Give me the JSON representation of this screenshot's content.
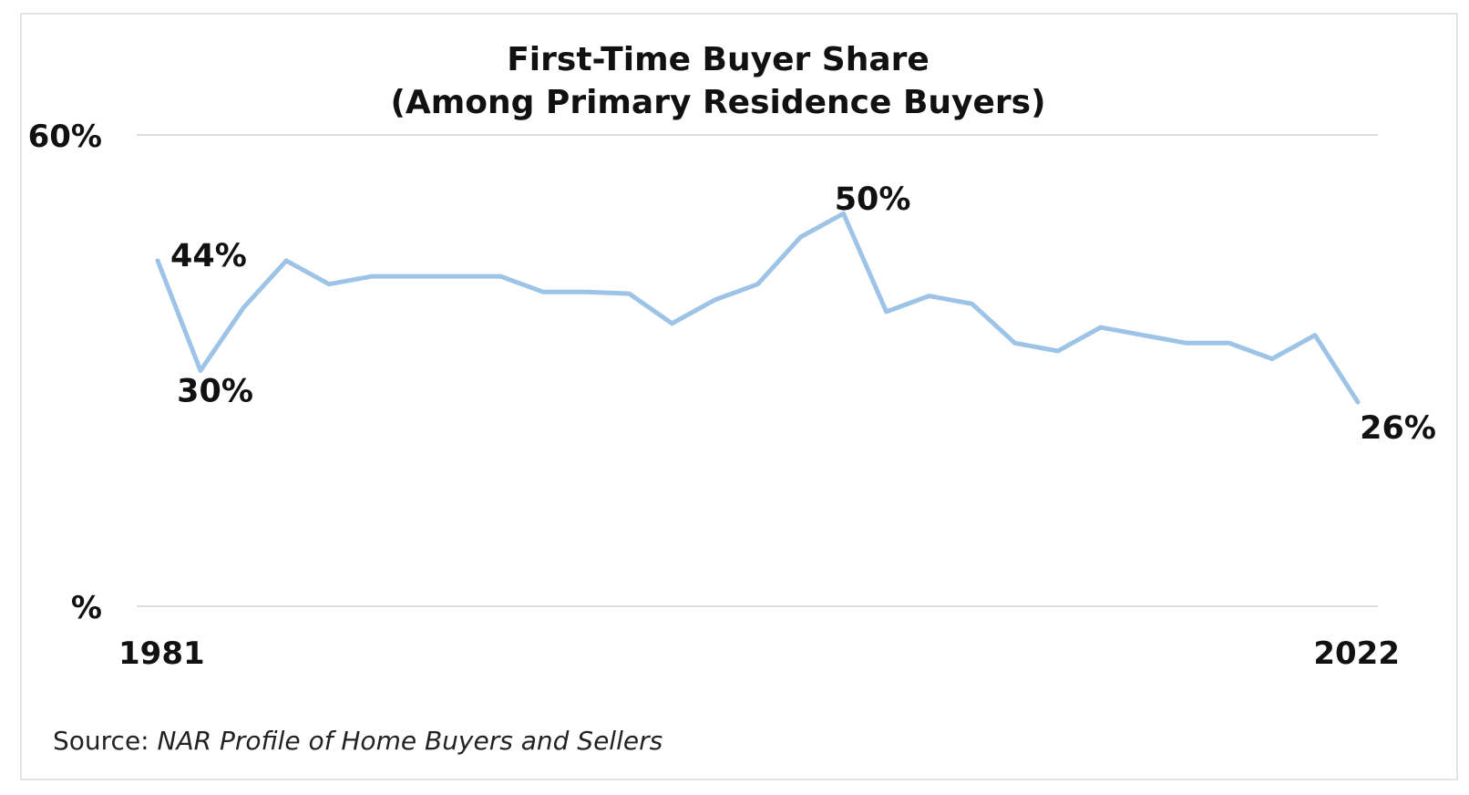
{
  "chart_data": {
    "type": "line",
    "title": "First-Time Buyer Share",
    "subtitle": "(Among Primary Residence Buyers)",
    "x_start_label": "1981",
    "x_end_label": "2022",
    "ylim": [
      0,
      60
    ],
    "y_top_label": "60%",
    "y_bottom_label": "%",
    "grid": true,
    "series": [
      {
        "color": "#9dc3e6",
        "values": [
          44,
          30,
          38,
          44,
          41,
          42,
          42,
          42,
          42,
          40,
          40,
          39.8,
          36,
          39,
          41,
          47,
          50,
          37.5,
          39.5,
          38.5,
          33.5,
          32.5,
          35.5,
          34.5,
          33.5,
          33.5,
          31.5,
          34.5,
          26
        ]
      }
    ],
    "annotations": [
      {
        "text": "44%",
        "index": 0
      },
      {
        "text": "30%",
        "index": 1
      },
      {
        "text": "50%",
        "index": 16
      },
      {
        "text": "26%",
        "index": 28
      }
    ]
  },
  "source": {
    "prefix": "Source: ",
    "title": "NAR Profile of Home Buyers and Sellers"
  }
}
